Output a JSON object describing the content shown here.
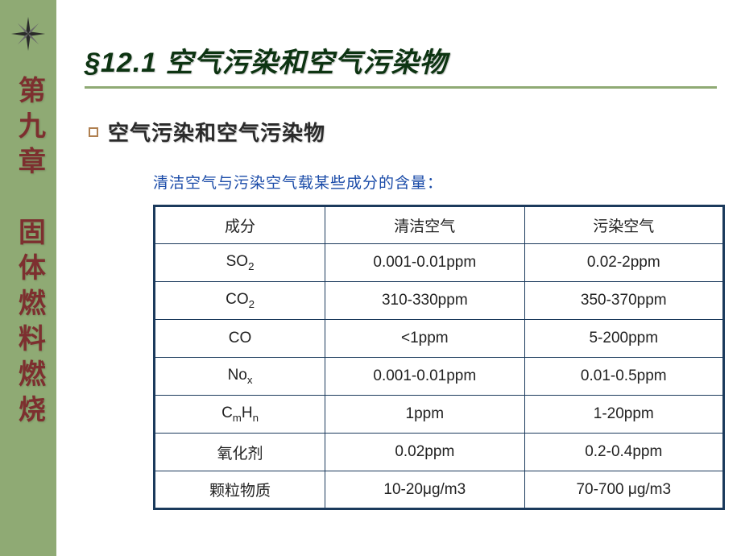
{
  "colors": {
    "sidebar_bg": "#8faa74",
    "chapter_text": "#7d2f2f",
    "title_text": "#0d3412",
    "title_underline": "#8faa74",
    "bullet_border": "#b08050",
    "caption_text": "#1a4ba8",
    "table_border": "#1b3a5c",
    "body_text": "#222222"
  },
  "sidebar": {
    "chapter_label": "第九章　固体燃料燃烧"
  },
  "title": {
    "prefix": "§12.1 ",
    "text": "空气污染和空气污染物"
  },
  "subhead": "空气污染和空气污染物",
  "table": {
    "caption": "清洁空气与污染空气载某些成分的含量：",
    "columns": [
      "成分",
      "清洁空气",
      "污染空气"
    ],
    "col_widths_pct": [
      30,
      35,
      35
    ],
    "rows": [
      {
        "component_html": "SO<span class=\"sub\">2</span>",
        "clean": "0.001-0.01ppm",
        "polluted": "0.02-2ppm"
      },
      {
        "component_html": "CO<span class=\"sub\">2</span>",
        "clean": "310-330ppm",
        "polluted": "350-370ppm"
      },
      {
        "component_html": "CO",
        "clean": "<1ppm",
        "polluted": "5-200ppm"
      },
      {
        "component_html": "No<span class=\"sub\">x</span>",
        "clean": "0.001-0.01ppm",
        "polluted": "0.01-0.5ppm"
      },
      {
        "component_html": "C<span class=\"sub\">m</span>H<span class=\"sub\">n</span>",
        "clean": "1ppm",
        "polluted": "1-20ppm"
      },
      {
        "component_html": "氧化剂",
        "clean": "0.02ppm",
        "polluted": "0.2-0.4ppm"
      },
      {
        "component_html": "颗粒物质",
        "clean": "10-20μg/m3",
        "polluted": "70-700 μg/m3"
      }
    ]
  }
}
